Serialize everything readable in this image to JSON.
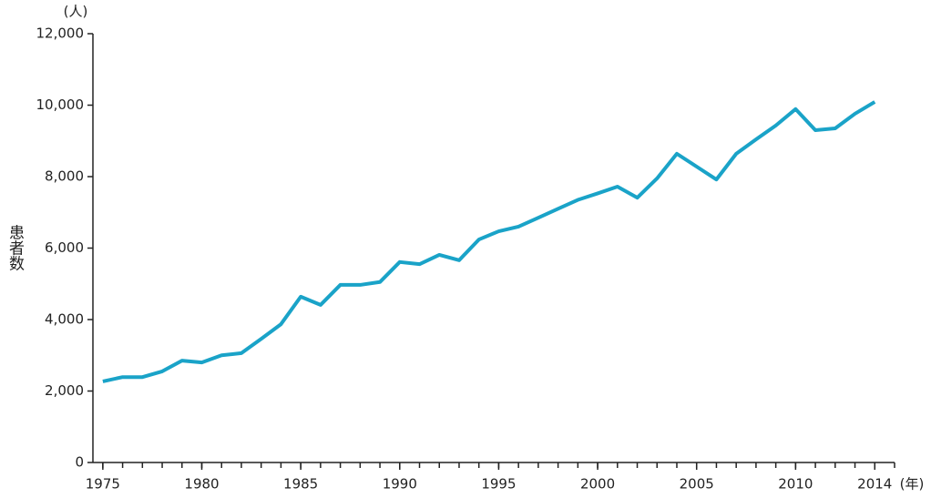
{
  "chart_data": {
    "type": "line",
    "y_label": "患者数",
    "y_unit": "(人)",
    "x_unit": "(年)",
    "x": [
      1975,
      1976,
      1977,
      1978,
      1979,
      1980,
      1981,
      1982,
      1983,
      1984,
      1985,
      1986,
      1987,
      1988,
      1989,
      1990,
      1991,
      1992,
      1993,
      1994,
      1995,
      1996,
      1997,
      1998,
      1999,
      2000,
      2001,
      2002,
      2003,
      2004,
      2005,
      2006,
      2007,
      2008,
      2009,
      2010,
      2011,
      2012,
      2013,
      2014
    ],
    "series": [
      {
        "color": "#1aa3c8",
        "values": [
          2270,
          2390,
          2390,
          2550,
          2850,
          2800,
          3000,
          3060,
          3460,
          3870,
          4640,
          4410,
          4970,
          4970,
          5050,
          5610,
          5550,
          5810,
          5660,
          6240,
          6470,
          6600,
          6850,
          7100,
          7350,
          7530,
          7720,
          7410,
          7950,
          8640,
          8280,
          7920,
          8640,
          9040,
          9430,
          9890,
          9300,
          9350,
          9760,
          10090
        ]
      }
    ],
    "xlim": [
      1974.5,
      2015
    ],
    "xticks": [
      1975,
      1980,
      1985,
      1990,
      1995,
      2000,
      2005,
      2010,
      2014
    ],
    "ylim": [
      0,
      12000
    ],
    "yticks": [
      0,
      {
        "value": 2000,
        "label": "2,000"
      },
      {
        "value": 4000,
        "label": "4,000"
      },
      {
        "value": 6000,
        "label": "6,000"
      },
      {
        "value": 8000,
        "label": "8,000"
      },
      {
        "value": 10000,
        "label": "10,000"
      },
      {
        "value": 12000,
        "label": "12,000"
      }
    ]
  }
}
